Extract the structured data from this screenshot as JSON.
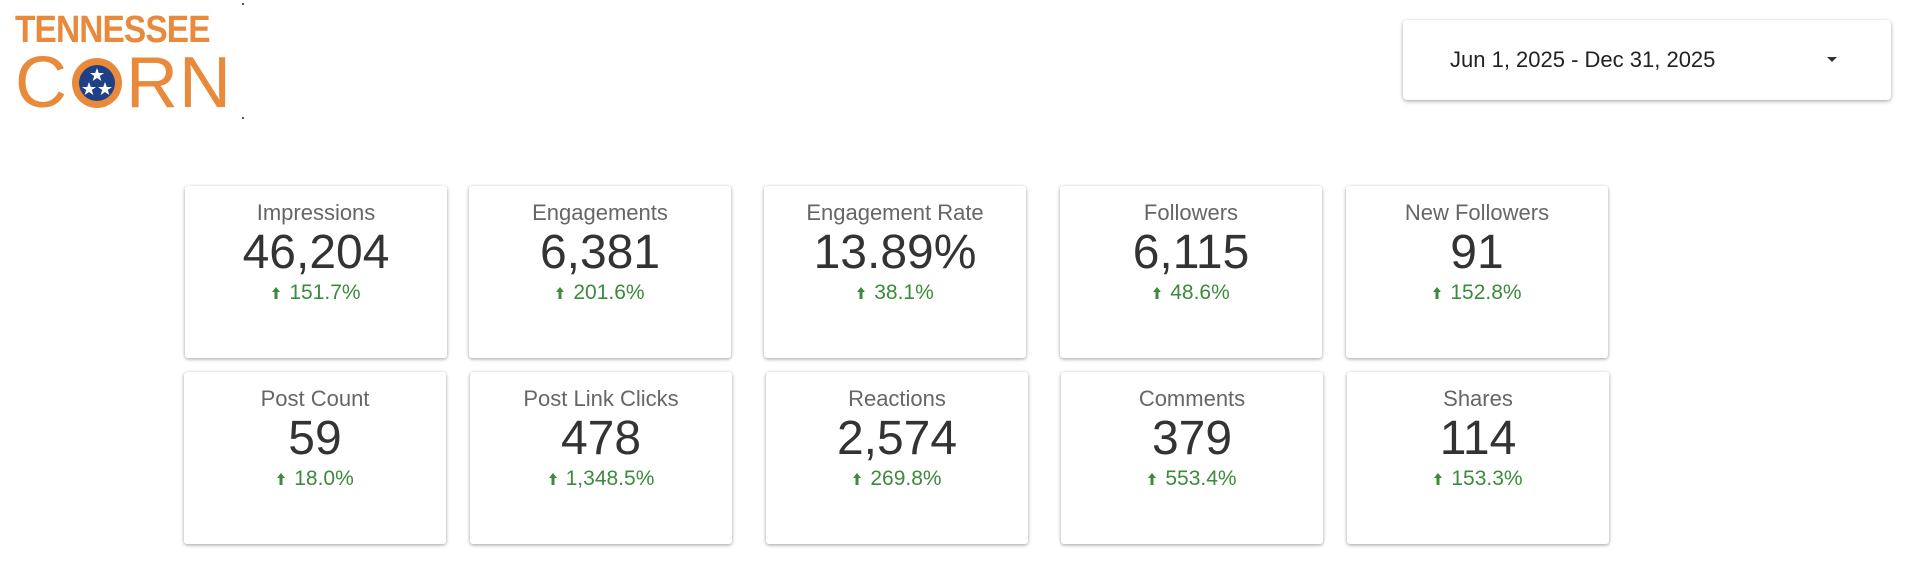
{
  "logo": {
    "top_text": "TENNESSEE",
    "bottom_left": "C",
    "bottom_right": "RN",
    "brand_color": "#e8893b",
    "seal_color": "#1f3f87"
  },
  "date_range": {
    "label": "Jun 1, 2025 - Dec 31, 2025",
    "icon": "caret-down-icon"
  },
  "colors": {
    "positive_delta": "#3c8a3c",
    "label": "#666666",
    "value": "#333333"
  },
  "metrics": [
    {
      "label": "Impressions",
      "value": "46,204",
      "delta": "151.7%"
    },
    {
      "label": "Engagements",
      "value": "6,381",
      "delta": "201.6%"
    },
    {
      "label": "Engagement Rate",
      "value": "13.89%",
      "delta": "38.1%"
    },
    {
      "label": "Followers",
      "value": "6,115",
      "delta": "48.6%"
    },
    {
      "label": "New Followers",
      "value": "91",
      "delta": "152.8%"
    },
    {
      "label": "Post Count",
      "value": "59",
      "delta": "18.0%"
    },
    {
      "label": "Post Link Clicks",
      "value": "478",
      "delta": "1,348.5%"
    },
    {
      "label": "Reactions",
      "value": "2,574",
      "delta": "269.8%"
    },
    {
      "label": "Comments",
      "value": "379",
      "delta": "553.4%"
    },
    {
      "label": "Shares",
      "value": "114",
      "delta": "153.3%"
    }
  ]
}
